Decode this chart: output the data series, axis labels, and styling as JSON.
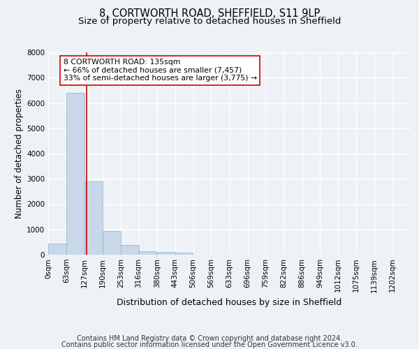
{
  "title": "8, CORTWORTH ROAD, SHEFFIELD, S11 9LP",
  "subtitle": "Size of property relative to detached houses in Sheffield",
  "xlabel": "Distribution of detached houses by size in Sheffield",
  "ylabel": "Number of detached properties",
  "footer_line1": "Contains HM Land Registry data © Crown copyright and database right 2024.",
  "footer_line2": "Contains public sector information licensed under the Open Government Licence v3.0.",
  "bin_edges": [
    0,
    63,
    127,
    190,
    253,
    316,
    380,
    443,
    506,
    569,
    633,
    696,
    759,
    822,
    886,
    949,
    1012,
    1075,
    1139,
    1202,
    1265
  ],
  "bar_heights": [
    450,
    6400,
    2900,
    950,
    380,
    150,
    100,
    80,
    0,
    0,
    0,
    0,
    0,
    0,
    0,
    0,
    0,
    0,
    0,
    0
  ],
  "bar_color": "#c8d8e8",
  "bar_edgecolor": "#8ab0cc",
  "property_size": 135,
  "property_line_color": "#cc0000",
  "annotation_text": "8 CORTWORTH ROAD: 135sqm\n← 66% of detached houses are smaller (7,457)\n33% of semi-detached houses are larger (3,775) →",
  "annotation_box_edgecolor": "#cc0000",
  "annotation_box_facecolor": "#ffffff",
  "ylim": [
    0,
    8000
  ],
  "yticks": [
    0,
    1000,
    2000,
    3000,
    4000,
    5000,
    6000,
    7000,
    8000
  ],
  "bg_color": "#eef2f7",
  "plot_bg_color": "#eef2f7",
  "grid_color": "#ffffff",
  "title_fontsize": 10.5,
  "subtitle_fontsize": 9.5,
  "axis_label_fontsize": 8.5,
  "tick_fontsize": 7.5,
  "annotation_fontsize": 7.8,
  "footer_fontsize": 7.0
}
